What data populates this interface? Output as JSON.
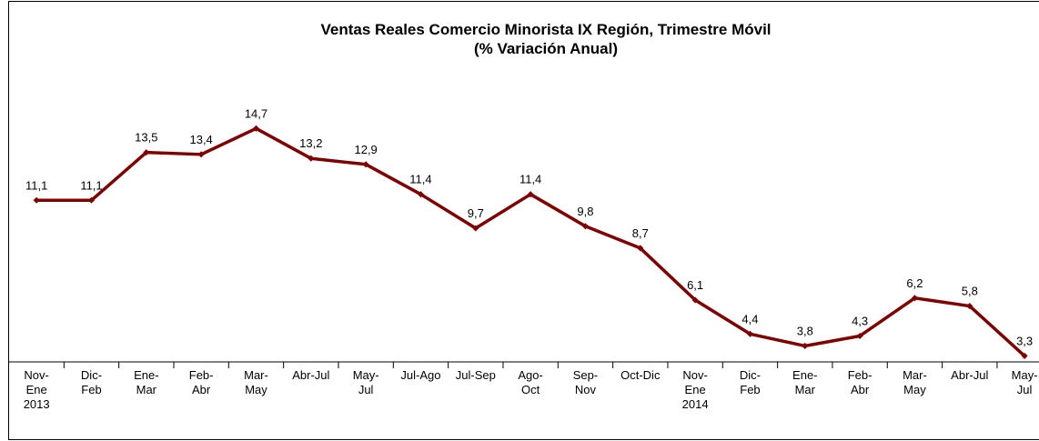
{
  "chart_data": {
    "type": "line",
    "title": "Ventas Reales Comercio Minorista IX Región, Trimestre Móvil",
    "subtitle": "(% Variación Anual)",
    "categories": [
      "Nov-\nEne\n2013",
      "Dic-\nFeb",
      "Ene-\nMar",
      "Feb-\nAbr",
      "Mar-\nMay",
      "Abr-Jul",
      "May-\nJul",
      "Jul-Ago",
      "Jul-Sep",
      "Ago-\nOct",
      "Sep-\nNov",
      "Oct-Dic",
      "Nov-\nEne\n2014",
      "Dic-\nFeb",
      "Ene-\nMar",
      "Feb-\nAbr",
      "Mar-\nMay",
      "Abr-Jul",
      "May-\nJul"
    ],
    "values": [
      11.1,
      11.1,
      13.5,
      13.4,
      14.7,
      13.2,
      12.9,
      11.4,
      9.7,
      11.4,
      9.8,
      8.7,
      6.1,
      4.4,
      3.8,
      4.3,
      6.2,
      5.8,
      3.3
    ],
    "value_labels": [
      "11,1",
      "11,1",
      "13,5",
      "13,4",
      "14,7",
      "13,2",
      "12,9",
      "11,4",
      "9,7",
      "11,4",
      "9,8",
      "8,7",
      "6,1",
      "4,4",
      "3,8",
      "4,3",
      "6,2",
      "5,8",
      "3,3"
    ],
    "color": "#800000",
    "ylim": [
      3,
      20
    ]
  }
}
